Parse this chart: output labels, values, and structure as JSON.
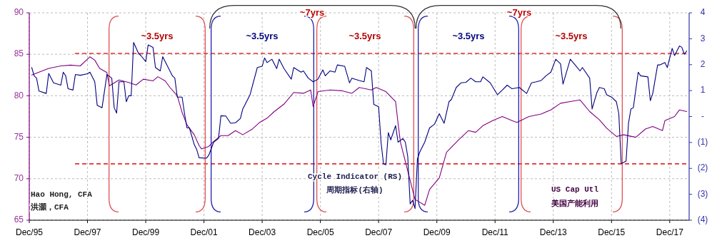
{
  "chart_data": {
    "type": "line",
    "xlim": [
      "1995-12",
      "2018-08"
    ],
    "xticks": [
      {
        "value": "1995-12",
        "label": "Dec/95"
      },
      {
        "value": "1997-12",
        "label": "Dec/97"
      },
      {
        "value": "1999-12",
        "label": "Dec/99"
      },
      {
        "value": "2001-12",
        "label": "Dec/01"
      },
      {
        "value": "2003-12",
        "label": "Dec/03"
      },
      {
        "value": "2005-12",
        "label": "Dec/05"
      },
      {
        "value": "2007-12",
        "label": "Dec/07"
      },
      {
        "value": "2009-12",
        "label": "Dec/09"
      },
      {
        "value": "2011-12",
        "label": "Dec/11"
      },
      {
        "value": "2013-12",
        "label": "Dec/13"
      },
      {
        "value": "2015-12",
        "label": "Dec/15"
      },
      {
        "value": "2017-12",
        "label": "Dec/17"
      }
    ],
    "ylim": [
      65,
      90
    ],
    "yticks": [
      65,
      70,
      75,
      80,
      85,
      90
    ],
    "y2lim": [
      -4,
      4
    ],
    "y2ticks": [
      {
        "value": -4,
        "label": "(4)"
      },
      {
        "value": -3,
        "label": "(3)"
      },
      {
        "value": -2,
        "label": "(2)"
      },
      {
        "value": -1,
        "label": "(1)"
      },
      {
        "value": 0,
        "label": "-"
      },
      1,
      2,
      3,
      4
    ],
    "grid": true,
    "series": [
      {
        "color": "#800080",
        "x": [
          "1996-01",
          "1996-08",
          "1997-01",
          "1997-05",
          "1997-09",
          "1998-01",
          "1998-03",
          "1998-05",
          "1998-08",
          "1998-09",
          "1999-01",
          "1999-05",
          "1999-08",
          "1999-11",
          "2000-03",
          "2000-05",
          "2000-08",
          "2000-10",
          "2001-01",
          "2001-03",
          "2001-05",
          "2001-08",
          "2001-10",
          "2001-11",
          "2002-02",
          "2002-04",
          "2002-07",
          "2002-10",
          "2003-01",
          "2003-04",
          "2003-08",
          "2003-11",
          "2004-02",
          "2004-05",
          "2004-09",
          "2005-01",
          "2005-05",
          "2005-08",
          "2005-09",
          "2005-11",
          "2006-04",
          "2006-09",
          "2007-01",
          "2007-04",
          "2007-09",
          "2007-11",
          "2008-03",
          "2008-07",
          "2008-08",
          "2008-09",
          "2009-01",
          "2009-03",
          "2009-07",
          "2009-09",
          "2010-01",
          "2010-04",
          "2010-09",
          "2011-01",
          "2011-04",
          "2011-07",
          "2011-11",
          "2012-03",
          "2012-07",
          "2012-09",
          "2013-02",
          "2013-07",
          "2013-11",
          "2014-03",
          "2014-07",
          "2014-11",
          "2015-03",
          "2015-07",
          "2015-10",
          "2016-02",
          "2016-05",
          "2016-10",
          "2017-02",
          "2017-05",
          "2017-09",
          "2017-10",
          "2018-02",
          "2018-04",
          "2018-07"
        ],
        "values": [
          82.5,
          83.3,
          83.6,
          83.7,
          83.6,
          84.7,
          84.3,
          83.3,
          82.8,
          81.2,
          81.9,
          81.6,
          81.3,
          82.0,
          81.8,
          82.3,
          81.8,
          81.0,
          80.0,
          78.0,
          76.5,
          75.3,
          74.0,
          73.6,
          73.9,
          74.5,
          75.2,
          75.2,
          75.8,
          75.3,
          76.0,
          76.8,
          77.3,
          78.1,
          79.0,
          80.4,
          80.3,
          80.7,
          78.7,
          80.5,
          80.7,
          80.6,
          80.3,
          81.0,
          80.7,
          81.0,
          80.5,
          79.3,
          76.7,
          74.4,
          69.8,
          67.5,
          66.8,
          68.7,
          70.1,
          73.2,
          74.7,
          75.8,
          75.6,
          76.4,
          77.0,
          77.5,
          77.0,
          76.8,
          77.5,
          77.8,
          78.3,
          79.1,
          79.3,
          79.5,
          78.1,
          77.1,
          76.1,
          75.1,
          75.3,
          75.0,
          76.0,
          76.3,
          75.8,
          77.0,
          77.5,
          78.3,
          78.1
        ]
      },
      {
        "color": "#000080",
        "axis": "y2",
        "x": [
          "1996-01",
          "1996-02",
          "1996-03",
          "1996-04",
          "1996-07",
          "1996-08",
          "1996-10",
          "1997-01",
          "1997-02",
          "1997-03",
          "1997-04",
          "1997-06",
          "1997-07",
          "1997-09",
          "1997-12",
          "1998-01",
          "1998-03",
          "1998-04",
          "1998-06",
          "1998-08",
          "1998-10",
          "1998-11",
          "1998-12",
          "1999-01",
          "1999-03",
          "1999-04",
          "1999-05",
          "1999-06",
          "1999-07",
          "1999-09",
          "1999-10",
          "1999-12",
          "2000-01",
          "2000-03",
          "2000-04",
          "2000-06",
          "2000-07",
          "2000-09",
          "2000-11",
          "2000-12",
          "2001-01",
          "2001-03",
          "2001-04",
          "2001-05",
          "2001-06",
          "2001-08",
          "2001-09",
          "2001-10",
          "2002-01",
          "2002-02",
          "2002-04",
          "2002-06",
          "2002-07",
          "2002-09",
          "2002-11",
          "2003-01",
          "2003-03",
          "2003-04",
          "2003-07",
          "2003-10",
          "2003-12",
          "2004-01",
          "2004-02",
          "2004-04",
          "2004-06",
          "2004-07",
          "2004-09",
          "2004-12",
          "2005-01",
          "2005-04",
          "2005-05",
          "2005-07",
          "2005-09",
          "2005-11",
          "2006-01",
          "2006-02",
          "2006-04",
          "2006-06",
          "2006-07",
          "2006-10",
          "2006-12",
          "2007-01",
          "2007-04",
          "2007-06",
          "2007-07",
          "2007-09",
          "2007-10",
          "2007-12",
          "2008-01",
          "2008-02",
          "2008-03",
          "2008-04",
          "2008-05",
          "2008-07",
          "2008-08",
          "2008-10",
          "2008-11",
          "2008-12",
          "2009-01",
          "2009-02",
          "2009-03",
          "2009-04",
          "2009-05",
          "2009-07",
          "2009-09",
          "2009-11",
          "2010-01",
          "2010-03",
          "2010-05",
          "2010-06",
          "2010-08",
          "2010-10",
          "2010-12",
          "2011-02",
          "2011-04",
          "2011-06",
          "2011-07",
          "2011-10",
          "2012-01",
          "2012-03",
          "2012-05",
          "2012-07",
          "2012-10",
          "2013-01",
          "2013-03",
          "2013-05",
          "2013-07",
          "2013-09",
          "2013-11",
          "2014-01",
          "2014-03",
          "2014-04",
          "2014-05",
          "2014-07",
          "2014-09",
          "2014-11",
          "2014-12",
          "2015-03",
          "2015-04",
          "2015-06",
          "2015-07",
          "2015-09",
          "2015-10",
          "2015-12",
          "2016-02",
          "2016-03",
          "2016-04",
          "2016-06",
          "2016-07",
          "2016-08",
          "2016-09",
          "2016-11",
          "2016-12",
          "2017-03",
          "2017-04",
          "2017-05",
          "2017-07",
          "2017-08",
          "2017-10",
          "2017-11",
          "2018-01",
          "2018-02",
          "2018-04",
          "2018-05",
          "2018-06",
          "2018-07"
        ],
        "values": [
          1.89,
          1.57,
          1.48,
          0.98,
          0.89,
          1.66,
          1.3,
          1.21,
          1.71,
          1.57,
          1.07,
          1.02,
          1.62,
          1.59,
          1.65,
          1.71,
          1.34,
          0.43,
          0.34,
          1.62,
          1.48,
          0.34,
          0.13,
          1.34,
          1.34,
          0.57,
          0.8,
          0.8,
          2.86,
          2.44,
          2.35,
          2.12,
          2.76,
          2.67,
          1.89,
          1.76,
          2.31,
          1.94,
          1.57,
          1.48,
          0.75,
          0.75,
          0.11,
          -0.44,
          -0.44,
          -1.08,
          -1.27,
          -1.59,
          -1.61,
          -1.49,
          -0.99,
          -0.85,
          0.03,
          0.02,
          -0.26,
          -0.24,
          -0.08,
          0.29,
          0.84,
          1.89,
          1.94,
          2.26,
          2.08,
          2.21,
          1.85,
          2.21,
          1.85,
          1.44,
          1.89,
          1.71,
          1.76,
          1.48,
          1.34,
          1.44,
          1.8,
          1.57,
          1.76,
          1.71,
          1.99,
          1.94,
          1.3,
          1.48,
          1.39,
          1.34,
          1.89,
          1.76,
          0.47,
          0.38,
          -0.99,
          -1.82,
          -1.86,
          -0.62,
          -0.9,
          -0.35,
          -0.99,
          -0.85,
          -0.99,
          -1.54,
          -3.37,
          -3.23,
          -3.55,
          -1.63,
          -1.36,
          -0.99,
          -0.44,
          -0.3,
          0.11,
          -0.26,
          0.57,
          0.66,
          1.12,
          1.3,
          1.32,
          1.48,
          1.34,
          1.34,
          1.53,
          1.3,
          0.84,
          1.02,
          1.21,
          1.07,
          1.12,
          0.89,
          1.3,
          1.34,
          1.39,
          1.57,
          1.71,
          2.21,
          2.03,
          1.25,
          1.57,
          2.21,
          1.99,
          1.76,
          1.89,
          1.48,
          0.29,
          0.93,
          1.12,
          1.07,
          0.84,
          0.75,
          0.57,
          0.11,
          -1.82,
          -1.72,
          -0.26,
          0.29,
          0.34,
          1.71,
          1.57,
          1.53,
          0.61,
          0.89,
          1.99,
          1.99,
          2.08,
          1.89,
          2.63,
          2.35,
          2.72,
          2.67,
          2.4,
          2.53
        ]
      }
    ],
    "ref_lines": [
      {
        "axis": "y",
        "value": 85.1,
        "color": "#e03030",
        "line_style": "dashed"
      },
      {
        "axis": "y",
        "value": 71.8,
        "color": "#e03030",
        "line_style": "dashed"
      }
    ],
    "annotations": [
      "~3.5yrs",
      "~3.5yrs",
      "~3.5yrs",
      "~3.5yrs",
      "~3.5yrs",
      "~7yrs",
      "~7yrs",
      "Cycle Indicator (RS)",
      "周期指标(右轴)",
      "US Cap Utl",
      "美国产能利用",
      "Hao Hong, CFA",
      "洪灝，CFA"
    ]
  }
}
